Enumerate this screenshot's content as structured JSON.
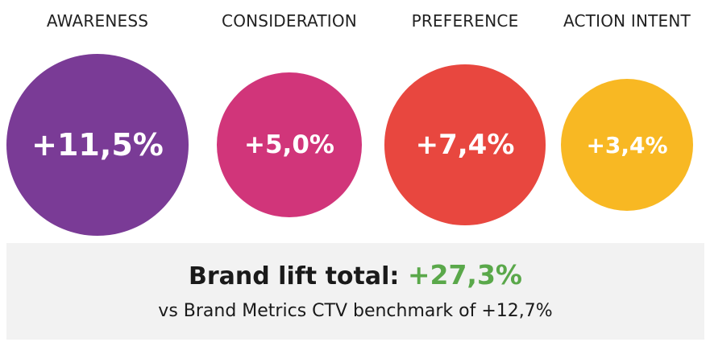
{
  "chart_data": {
    "type": "bubble",
    "categories": [
      "AWARENESS",
      "CONSIDERATION",
      "PREFERENCE",
      "ACTION INTENT"
    ],
    "values": [
      11.5,
      5.0,
      7.4,
      3.4
    ],
    "value_labels": [
      "+11,5%",
      "+5,0%",
      "+7,4%",
      "+3,4%"
    ],
    "colors": [
      "#7a3b96",
      "#d1357a",
      "#e8473f",
      "#f8b823"
    ]
  },
  "summary": {
    "label": "Brand lift total:",
    "total": "+27,3%",
    "benchmark": "vs Brand Metrics CTV benchmark of +12,7%"
  }
}
